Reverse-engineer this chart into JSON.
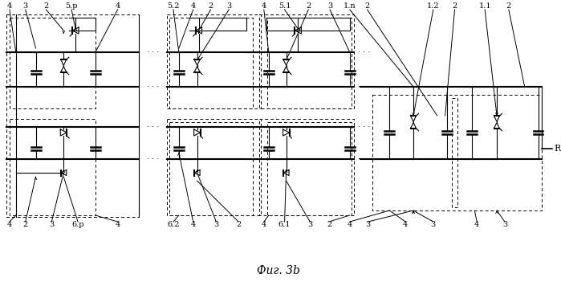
{
  "fig_width": 6.99,
  "fig_height": 3.51,
  "dpi": 100,
  "title": "Фиг. 3b",
  "bg": "#ffffff"
}
